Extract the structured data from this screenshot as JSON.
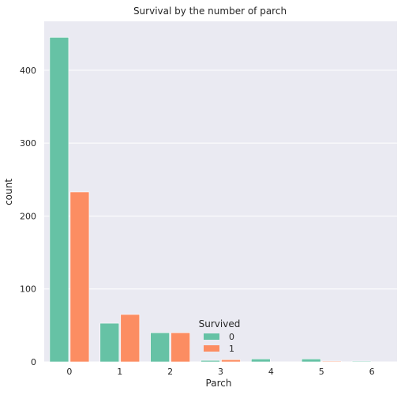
{
  "chart_data": {
    "type": "bar",
    "title": "Survival by the number of parch",
    "xlabel": "Parch",
    "ylabel": "count",
    "categories": [
      "0",
      "1",
      "2",
      "3",
      "4",
      "5",
      "6"
    ],
    "series": [
      {
        "name": "0",
        "values": [
          445,
          53,
          40,
          2,
          4,
          4,
          1
        ],
        "color": "#66c2a5"
      },
      {
        "name": "1",
        "values": [
          233,
          65,
          40,
          3,
          0,
          1,
          0
        ],
        "color": "#fc8d62"
      }
    ],
    "yticks": [
      0,
      100,
      200,
      300,
      400
    ],
    "ylim": [
      0,
      467
    ],
    "grid": true,
    "legend": {
      "title": "Survived",
      "placement": "lower-center"
    },
    "background": "#eaeaf2"
  }
}
